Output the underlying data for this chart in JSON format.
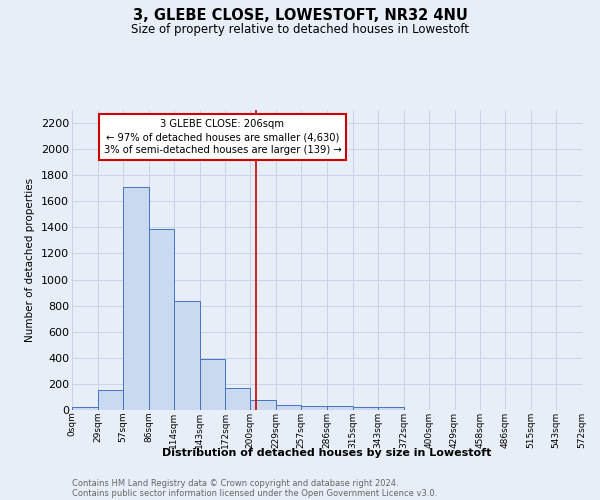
{
  "title": "3, GLEBE CLOSE, LOWESTOFT, NR32 4NU",
  "subtitle": "Size of property relative to detached houses in Lowestoft",
  "xlabel": "Distribution of detached houses by size in Lowestoft",
  "ylabel": "Number of detached properties",
  "footnote1": "Contains HM Land Registry data © Crown copyright and database right 2024.",
  "footnote2": "Contains public sector information licensed under the Open Government Licence v3.0.",
  "bar_edges": [
    0,
    29,
    57,
    86,
    114,
    143,
    172,
    200,
    229,
    257,
    286,
    315,
    343,
    372,
    400,
    429,
    458,
    486,
    515,
    543,
    572
  ],
  "bar_heights": [
    20,
    155,
    1710,
    1390,
    835,
    390,
    165,
    75,
    35,
    30,
    30,
    25,
    20,
    0,
    0,
    0,
    0,
    0,
    0,
    0
  ],
  "bar_color": "#c9d9f0",
  "bar_edge_color": "#4472c4",
  "grid_color": "#c8d4e8",
  "background_color": "#e8eef8",
  "vline_x": 206,
  "vline_color": "#cc0000",
  "annotation_text": "3 GLEBE CLOSE: 206sqm\n← 97% of detached houses are smaller (4,630)\n3% of semi-detached houses are larger (139) →",
  "ylim": [
    0,
    2300
  ],
  "yticks": [
    0,
    200,
    400,
    600,
    800,
    1000,
    1200,
    1400,
    1600,
    1800,
    2000,
    2200
  ],
  "xtick_labels": [
    "0sqm",
    "29sqm",
    "57sqm",
    "86sqm",
    "114sqm",
    "143sqm",
    "172sqm",
    "200sqm",
    "229sqm",
    "257sqm",
    "286sqm",
    "315sqm",
    "343sqm",
    "372sqm",
    "400sqm",
    "429sqm",
    "458sqm",
    "486sqm",
    "515sqm",
    "543sqm",
    "572sqm"
  ],
  "xlim_max": 572
}
